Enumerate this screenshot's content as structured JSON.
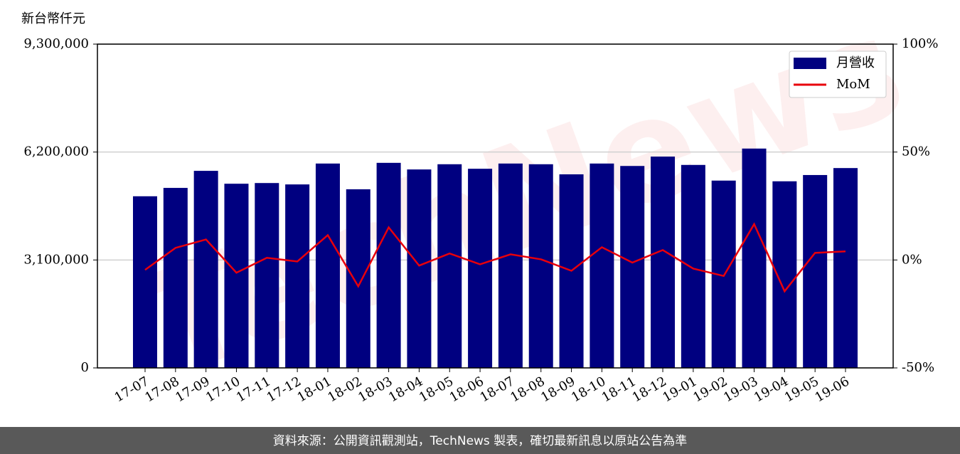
{
  "chart_data": {
    "type": "bar",
    "y_label": "新台幣仟元",
    "watermark": "TechNews",
    "footer": "資料來源：公開資訊觀測站，TechNews 製表，確切最新訊息以原站公告為準",
    "categories": [
      "17-07",
      "17-08",
      "17-09",
      "17-10",
      "17-11",
      "17-12",
      "18-01",
      "18-02",
      "18-03",
      "18-04",
      "18-05",
      "18-06",
      "18-07",
      "18-08",
      "18-09",
      "18-10",
      "18-11",
      "18-12",
      "19-01",
      "19-02",
      "19-03",
      "19-04",
      "19-05",
      "19-06"
    ],
    "series": [
      {
        "name": "月營收",
        "color": "#000080",
        "values": [
          4930000,
          5170000,
          5660000,
          5290000,
          5310000,
          5270000,
          5870000,
          5130000,
          5890000,
          5700000,
          5850000,
          5720000,
          5870000,
          5850000,
          5560000,
          5870000,
          5800000,
          6070000,
          5830000,
          5380000,
          6300000,
          5360000,
          5540000,
          5740000
        ]
      },
      {
        "name": "MoM",
        "color": "#e8000b",
        "type": "line",
        "axis": "y2",
        "values": [
          -4.6,
          5.6,
          9.5,
          -5.9,
          1.0,
          -0.7,
          11.5,
          -12.2,
          15.1,
          -2.6,
          3.0,
          -2.0,
          2.6,
          0.3,
          -5.0,
          5.9,
          -1.2,
          4.6,
          -4.0,
          -7.4,
          16.6,
          -14.5,
          3.3,
          4.0
        ]
      }
    ],
    "ylim": [
      0,
      9300000
    ],
    "yticks": [
      0,
      {
        "value": 3100000,
        "label": "3,100,000"
      },
      {
        "value": 6200000,
        "label": "6,200,000"
      },
      {
        "value": 9300000,
        "label": "9,300,000"
      }
    ],
    "y2lim": [
      -50,
      100
    ],
    "y2ticks": [
      {
        "value": -50,
        "label": "-50%"
      },
      {
        "value": 0,
        "label": "0%"
      },
      {
        "value": 50,
        "label": "50%"
      },
      {
        "value": 100,
        "label": "100%"
      }
    ],
    "grid": true,
    "legend": "upper right"
  }
}
